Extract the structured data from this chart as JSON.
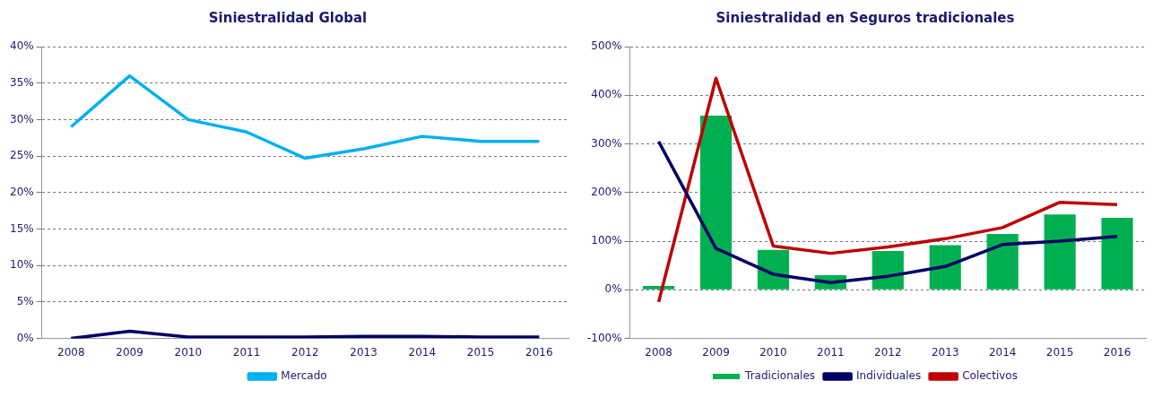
{
  "chart_data": [
    {
      "type": "line",
      "title": "Siniestralidad Global",
      "categories": [
        "2008",
        "2009",
        "2010",
        "2011",
        "2012",
        "2013",
        "2014",
        "2015",
        "2016"
      ],
      "series": [
        {
          "color": "#000066",
          "values": [
            0,
            1,
            0.2,
            0.2,
            0.2,
            0.3,
            0.3,
            0.2,
            0.2
          ]
        },
        {
          "name": "Mercado",
          "color": "#00b0f0",
          "values": [
            29,
            36,
            30,
            28.3,
            24.7,
            26,
            27.7,
            27,
            27
          ]
        }
      ],
      "ylim": [
        0,
        40
      ],
      "yticks": [
        {
          "value": 0,
          "label": "0%"
        },
        {
          "value": 5,
          "label": "5%"
        },
        {
          "value": 10,
          "label": "10%"
        },
        {
          "value": 15,
          "label": "15%"
        },
        {
          "value": 20,
          "label": "20%"
        },
        {
          "value": 25,
          "label": "25%"
        },
        {
          "value": 30,
          "label": "30%"
        },
        {
          "value": 35,
          "label": "35%"
        },
        {
          "value": 40,
          "label": "40%"
        }
      ],
      "grid": "y",
      "legend": "bottom",
      "marker": "none"
    },
    {
      "type": "bar",
      "title": "Siniestralidad en Seguros tradicionales",
      "categories": [
        "2008",
        "2009",
        "2010",
        "2011",
        "2012",
        "2013",
        "2014",
        "2015",
        "2016"
      ],
      "series": [
        {
          "name": "Tradicionales",
          "color": "#00b050",
          "values": [
            8,
            358,
            82,
            30,
            80,
            92,
            115,
            155,
            148
          ]
        },
        {
          "name": "Individuales",
          "type": "line",
          "color": "#000066",
          "values": [
            305,
            85,
            32,
            15,
            28,
            48,
            93,
            100,
            110
          ]
        },
        {
          "name": "Colectivos",
          "type": "line",
          "color": "#c00000",
          "values": [
            -25,
            435,
            90,
            75,
            88,
            105,
            128,
            180,
            175
          ]
        }
      ],
      "ylim": [
        -100,
        500
      ],
      "yticks": [
        {
          "value": -100,
          "label": "-100%"
        },
        {
          "value": 0,
          "label": "0%"
        },
        {
          "value": 100,
          "label": "100%"
        },
        {
          "value": 200,
          "label": "200%"
        },
        {
          "value": 300,
          "label": "300%"
        },
        {
          "value": 400,
          "label": "400%"
        },
        {
          "value": 500,
          "label": "500%"
        }
      ],
      "grid": "y",
      "legend": "bottom",
      "marker": "none"
    }
  ]
}
